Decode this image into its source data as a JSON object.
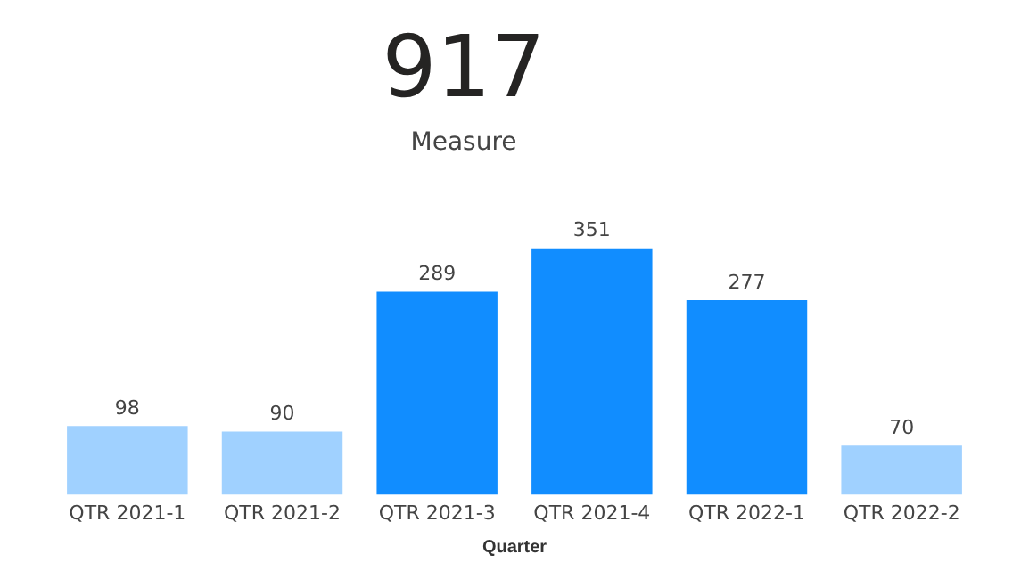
{
  "chart_data": [
    {
      "type": "other",
      "title": "917",
      "subtitle": "Measure"
    },
    {
      "type": "bar",
      "xlabel": "Quarter",
      "categories": [
        "QTR 2021-1",
        "QTR 2021-2",
        "QTR 2021-3",
        "QTR 2021-4",
        "QTR 2022-1",
        "QTR 2022-2"
      ],
      "values": [
        98,
        90,
        289,
        351,
        277,
        70
      ],
      "colors": [
        "#a0d1ff",
        "#a0d1ff",
        "#118dff",
        "#118dff",
        "#118dff",
        "#a0d1ff"
      ],
      "data_labels": true,
      "grid": false,
      "legend": false
    }
  ]
}
